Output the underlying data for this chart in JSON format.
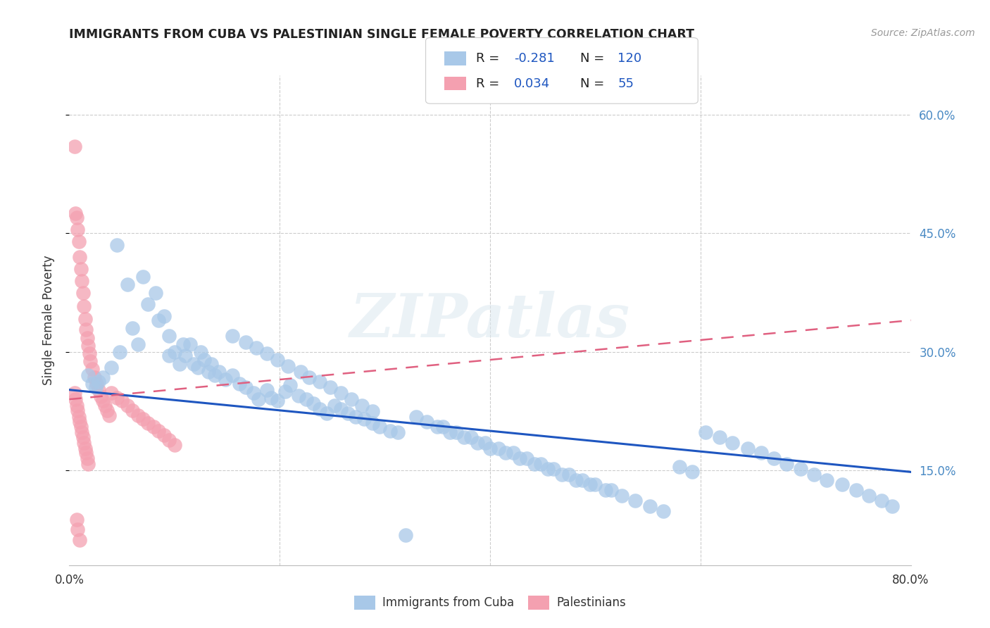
{
  "title": "IMMIGRANTS FROM CUBA VS PALESTINIAN SINGLE FEMALE POVERTY CORRELATION CHART",
  "source": "Source: ZipAtlas.com",
  "ylabel": "Single Female Poverty",
  "xmin": 0.0,
  "xmax": 0.8,
  "ymin": 0.03,
  "ymax": 0.65,
  "ytick_vals": [
    0.15,
    0.3,
    0.45,
    0.6
  ],
  "ytick_labels": [
    "15.0%",
    "30.0%",
    "45.0%",
    "60.0%"
  ],
  "xtick_vals": [
    0.0,
    0.2,
    0.4,
    0.6,
    0.8
  ],
  "xtick_labels": [
    "0.0%",
    "",
    "",
    "",
    "80.0%"
  ],
  "watermark": "ZIPatlas",
  "blue_line_x": [
    0.0,
    0.8
  ],
  "blue_line_y": [
    0.252,
    0.148
  ],
  "pink_line_x": [
    0.0,
    0.8
  ],
  "pink_line_y": [
    0.24,
    0.34
  ],
  "cuba_x": [
    0.022,
    0.018,
    0.025,
    0.028,
    0.032,
    0.045,
    0.055,
    0.06,
    0.048,
    0.065,
    0.075,
    0.082,
    0.07,
    0.09,
    0.085,
    0.095,
    0.1,
    0.105,
    0.11,
    0.115,
    0.118,
    0.122,
    0.128,
    0.132,
    0.138,
    0.095,
    0.108,
    0.125,
    0.135,
    0.142,
    0.148,
    0.155,
    0.162,
    0.168,
    0.175,
    0.18,
    0.188,
    0.192,
    0.198,
    0.205,
    0.21,
    0.218,
    0.225,
    0.232,
    0.238,
    0.245,
    0.252,
    0.258,
    0.265,
    0.272,
    0.28,
    0.288,
    0.295,
    0.305,
    0.312,
    0.32,
    0.155,
    0.168,
    0.178,
    0.188,
    0.198,
    0.208,
    0.22,
    0.228,
    0.238,
    0.248,
    0.258,
    0.268,
    0.278,
    0.288,
    0.35,
    0.362,
    0.375,
    0.388,
    0.4,
    0.415,
    0.428,
    0.442,
    0.455,
    0.468,
    0.482,
    0.495,
    0.51,
    0.525,
    0.538,
    0.552,
    0.565,
    0.58,
    0.592,
    0.605,
    0.618,
    0.63,
    0.645,
    0.658,
    0.67,
    0.682,
    0.695,
    0.708,
    0.72,
    0.735,
    0.748,
    0.76,
    0.772,
    0.782,
    0.04,
    0.33,
    0.34,
    0.355,
    0.368,
    0.382,
    0.395,
    0.408,
    0.422,
    0.435,
    0.448,
    0.46,
    0.475,
    0.488,
    0.5,
    0.515
  ],
  "cuba_y": [
    0.26,
    0.27,
    0.255,
    0.262,
    0.268,
    0.435,
    0.385,
    0.33,
    0.3,
    0.31,
    0.36,
    0.375,
    0.395,
    0.345,
    0.34,
    0.295,
    0.3,
    0.285,
    0.295,
    0.31,
    0.285,
    0.28,
    0.29,
    0.275,
    0.27,
    0.32,
    0.31,
    0.3,
    0.285,
    0.275,
    0.265,
    0.27,
    0.26,
    0.255,
    0.248,
    0.24,
    0.252,
    0.242,
    0.238,
    0.25,
    0.258,
    0.245,
    0.24,
    0.235,
    0.228,
    0.222,
    0.232,
    0.228,
    0.222,
    0.218,
    0.215,
    0.21,
    0.205,
    0.2,
    0.198,
    0.068,
    0.32,
    0.312,
    0.305,
    0.298,
    0.29,
    0.282,
    0.275,
    0.268,
    0.262,
    0.255,
    0.248,
    0.24,
    0.232,
    0.225,
    0.205,
    0.198,
    0.192,
    0.185,
    0.178,
    0.172,
    0.165,
    0.158,
    0.152,
    0.145,
    0.138,
    0.132,
    0.125,
    0.118,
    0.112,
    0.105,
    0.098,
    0.155,
    0.148,
    0.198,
    0.192,
    0.185,
    0.178,
    0.172,
    0.165,
    0.158,
    0.152,
    0.145,
    0.138,
    0.132,
    0.125,
    0.118,
    0.112,
    0.105,
    0.28,
    0.218,
    0.212,
    0.205,
    0.198,
    0.192,
    0.185,
    0.178,
    0.172,
    0.165,
    0.158,
    0.152,
    0.145,
    0.138,
    0.132,
    0.125
  ],
  "pal_x": [
    0.005,
    0.006,
    0.007,
    0.008,
    0.009,
    0.01,
    0.011,
    0.012,
    0.013,
    0.014,
    0.015,
    0.016,
    0.017,
    0.018,
    0.019,
    0.02,
    0.022,
    0.024,
    0.026,
    0.028,
    0.03,
    0.032,
    0.034,
    0.036,
    0.038,
    0.005,
    0.006,
    0.007,
    0.008,
    0.009,
    0.01,
    0.011,
    0.012,
    0.013,
    0.014,
    0.015,
    0.016,
    0.017,
    0.018,
    0.04,
    0.045,
    0.05,
    0.055,
    0.06,
    0.065,
    0.07,
    0.075,
    0.08,
    0.085,
    0.09,
    0.095,
    0.1,
    0.007,
    0.008,
    0.01
  ],
  "pal_y": [
    0.56,
    0.475,
    0.47,
    0.455,
    0.44,
    0.42,
    0.405,
    0.39,
    0.375,
    0.358,
    0.342,
    0.328,
    0.318,
    0.308,
    0.298,
    0.288,
    0.278,
    0.268,
    0.26,
    0.252,
    0.244,
    0.238,
    0.232,
    0.226,
    0.22,
    0.248,
    0.24,
    0.232,
    0.226,
    0.218,
    0.212,
    0.205,
    0.198,
    0.192,
    0.185,
    0.178,
    0.172,
    0.165,
    0.158,
    0.248,
    0.242,
    0.238,
    0.232,
    0.226,
    0.22,
    0.215,
    0.21,
    0.205,
    0.2,
    0.195,
    0.188,
    0.182,
    0.088,
    0.075,
    0.062
  ]
}
